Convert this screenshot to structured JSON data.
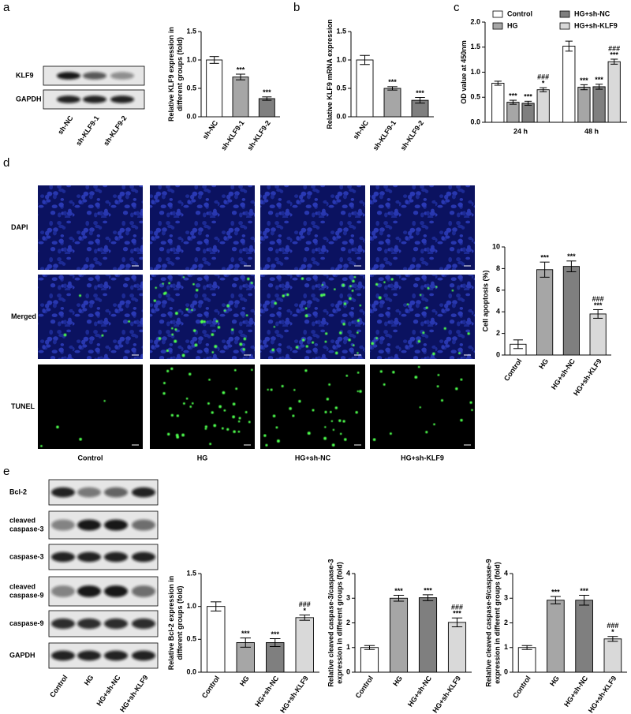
{
  "panels": [
    "a",
    "b",
    "c",
    "d",
    "e"
  ],
  "blot_a": {
    "rows": [
      [
        "KLF9"
      ],
      [
        "GAPDH"
      ]
    ],
    "lanes": [
      "sh-NC",
      "sh-KLF9-1",
      "sh-KLF9-2"
    ]
  },
  "microscopy": {
    "rows": [
      "DAPI",
      "Merged",
      "TUNEL"
    ],
    "columns": [
      "Control",
      "HG",
      "HG+sh-NC",
      "HG+sh-KLF9"
    ]
  },
  "blot_e": {
    "rows": [
      [
        "Bcl-2"
      ],
      [
        "cleaved",
        "caspase-3"
      ],
      [
        "caspase-3"
      ],
      [
        "cleaved",
        "caspase-9"
      ],
      [
        "caspase-9"
      ],
      [
        "GAPDH"
      ]
    ],
    "lanes": [
      "Control",
      "HG",
      "HG+sh-NC",
      "HG+sh-KLF9"
    ]
  },
  "chart_data": [
    {
      "type": "bar",
      "ylabel": [
        "Relative KLF9 expression in",
        "different groups (fold)"
      ],
      "categories": [
        "sh-NC",
        "sh-KLF9-1",
        "sh-KLF9-2"
      ],
      "values": [
        1.0,
        0.7,
        0.32
      ],
      "errors": [
        0.06,
        0.05,
        0.03
      ],
      "markers": [
        [],
        [
          "***"
        ],
        [
          "***"
        ]
      ],
      "colors": [
        "#ffffff",
        "#a6a6a6",
        "#7f7f7f"
      ],
      "ylim": [
        0,
        1.5
      ],
      "yticks": [
        {
          "value": 0,
          "label": "0.0"
        },
        0.5,
        {
          "value": 1,
          "label": "1.0"
        },
        1.5
      ]
    },
    {
      "type": "bar",
      "ylabel": [
        "Relative KLF9 mRNA expression"
      ],
      "categories": [
        "sh-NC",
        "sh-KLF9-1",
        "sh-KLF9-2"
      ],
      "values": [
        1.0,
        0.5,
        0.29
      ],
      "errors": [
        0.08,
        0.03,
        0.05
      ],
      "markers": [
        [],
        [
          "***"
        ],
        [
          "***"
        ]
      ],
      "colors": [
        "#ffffff",
        "#a6a6a6",
        "#7f7f7f"
      ],
      "ylim": [
        0,
        1.5
      ],
      "yticks": [
        {
          "value": 0,
          "label": "0.0"
        },
        0.5,
        {
          "value": 1,
          "label": "1.0"
        },
        1.5
      ]
    },
    {
      "type": "grouped-bar",
      "ylabel": [
        "OD value at 450nm"
      ],
      "categories": [
        "24 h",
        "48 h"
      ],
      "legend": "top",
      "series": [
        {
          "name": "Control",
          "color": "#ffffff",
          "values": [
            0.78,
            1.52
          ],
          "errors": [
            0.04,
            0.1
          ],
          "markers": [
            [],
            []
          ]
        },
        {
          "name": "HG",
          "color": "#a6a6a6",
          "values": [
            0.4,
            0.7
          ],
          "errors": [
            0.04,
            0.05
          ],
          "markers": [
            [
              "***"
            ],
            [
              "***"
            ]
          ]
        },
        {
          "name": "HG+sh-NC",
          "color": "#7f7f7f",
          "values": [
            0.38,
            0.71
          ],
          "errors": [
            0.04,
            0.05
          ],
          "markers": [
            [
              "***"
            ],
            [
              "***"
            ]
          ]
        },
        {
          "name": "HG+sh-KLF9",
          "color": "#d9d9d9",
          "values": [
            0.65,
            1.21
          ],
          "errors": [
            0.04,
            0.05
          ],
          "markers": [
            [
              "###",
              "*"
            ],
            [
              "###",
              "***"
            ]
          ]
        }
      ],
      "ylim": [
        0,
        2.0
      ],
      "yticks": [
        {
          "value": 0,
          "label": "0.0"
        },
        0.5,
        {
          "value": 1,
          "label": "1.0"
        },
        1.5,
        {
          "value": 2,
          "label": "2.0"
        }
      ]
    },
    {
      "type": "bar",
      "ylabel": [
        "Cell apoptosis (%)"
      ],
      "categories": [
        "Control",
        "HG",
        "HG+sh-NC",
        "HG+sh-KLF9"
      ],
      "values": [
        1.0,
        7.9,
        8.2,
        3.8
      ],
      "errors": [
        0.4,
        0.7,
        0.5,
        0.4
      ],
      "markers": [
        [],
        [
          "***"
        ],
        [
          "***"
        ],
        [
          "###",
          "***"
        ]
      ],
      "colors": [
        "#ffffff",
        "#a6a6a6",
        "#7f7f7f",
        "#d9d9d9"
      ],
      "ylim": [
        0,
        10
      ],
      "yticks": [
        0,
        2,
        4,
        6,
        8,
        10
      ]
    },
    {
      "type": "bar",
      "ylabel": [
        "Relative Bcl-2 expression in",
        "different groups (fold)"
      ],
      "categories": [
        "Control",
        "HG",
        "HG+sh-NC",
        "HG+sh-KLF9"
      ],
      "values": [
        1.0,
        0.45,
        0.45,
        0.83
      ],
      "errors": [
        0.07,
        0.07,
        0.06,
        0.04
      ],
      "markers": [
        [],
        [
          "***"
        ],
        [
          "***"
        ],
        [
          "###",
          "*"
        ]
      ],
      "colors": [
        "#ffffff",
        "#a6a6a6",
        "#7f7f7f",
        "#d9d9d9"
      ],
      "ylim": [
        0,
        1.5
      ],
      "yticks": [
        {
          "value": 0,
          "label": "0.0"
        },
        0.5,
        {
          "value": 1,
          "label": "1.0"
        },
        1.5
      ]
    },
    {
      "type": "bar",
      "ylabel": [
        "Relative cleaved caspase-3/caspase-3",
        "expression in different groups (fold)"
      ],
      "categories": [
        "Control",
        "HG",
        "HG+sh-NC",
        "HG+sh-KLF9"
      ],
      "values": [
        1.0,
        3.0,
        3.02,
        2.02
      ],
      "errors": [
        0.08,
        0.12,
        0.12,
        0.18
      ],
      "markers": [
        [],
        [
          "***"
        ],
        [
          "***"
        ],
        [
          "###",
          "***"
        ]
      ],
      "colors": [
        "#ffffff",
        "#a6a6a6",
        "#7f7f7f",
        "#d9d9d9"
      ],
      "ylim": [
        0,
        4
      ],
      "yticks": [
        0,
        1,
        2,
        3,
        4
      ]
    },
    {
      "type": "bar",
      "ylabel": [
        "Relative cleaved caspase-9/caspase-9",
        "expression in different groups (fold)"
      ],
      "categories": [
        "Control",
        "HG",
        "HG+sh-NC",
        "HG+sh-KLF9"
      ],
      "values": [
        1.0,
        2.92,
        2.92,
        1.35
      ],
      "errors": [
        0.08,
        0.15,
        0.2,
        0.1
      ],
      "markers": [
        [],
        [
          "***"
        ],
        [
          "***"
        ],
        [
          "###",
          "*"
        ]
      ],
      "colors": [
        "#ffffff",
        "#a6a6a6",
        "#7f7f7f",
        "#d9d9d9"
      ],
      "ylim": [
        0,
        4
      ],
      "yticks": [
        0,
        1,
        2,
        3,
        4
      ]
    }
  ]
}
